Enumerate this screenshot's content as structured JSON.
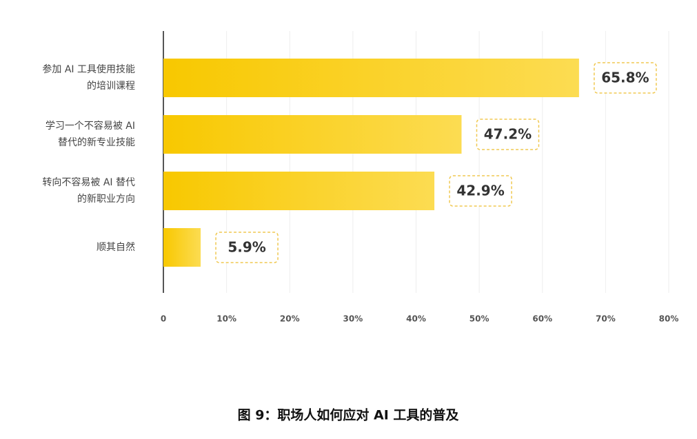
{
  "chart_data": {
    "type": "hbar",
    "title": "图 9：职场人如何应对 AI 工具的普及",
    "categories": [
      [
        "参加 AI 工具使用技能",
        "的培训课程"
      ],
      [
        "学习一个不容易被 AI",
        "替代的新专业技能"
      ],
      [
        "转向不容易被 AI 替代",
        "的新职业方向"
      ],
      [
        "顺其自然"
      ]
    ],
    "values": [
      65.8,
      47.2,
      42.9,
      5.9
    ],
    "value_labels": [
      "65.8%",
      "47.2%",
      "42.9%",
      "5.9%"
    ],
    "color": "#f8c800",
    "xlim": [
      0,
      80
    ],
    "xticks": [
      0,
      {
        "value": 10,
        "label": "10%"
      },
      {
        "value": 20,
        "label": "20%"
      },
      {
        "value": 30,
        "label": "30%"
      },
      {
        "value": 40,
        "label": "40%"
      },
      {
        "value": 50,
        "label": "50%"
      },
      {
        "value": 60,
        "label": "60%"
      },
      {
        "value": 70,
        "label": "70%"
      },
      {
        "value": 80,
        "label": "80%"
      }
    ],
    "grid": true
  }
}
